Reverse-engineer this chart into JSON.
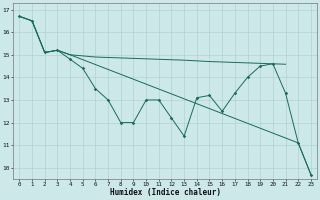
{
  "xlabel": "Humidex (Indice chaleur)",
  "background_color": "#cce8e8",
  "grid_color": "#aacece",
  "line_color": "#1a6b5a",
  "xlim": [
    -0.5,
    23.5
  ],
  "ylim": [
    9.5,
    17.3
  ],
  "yticks": [
    10,
    11,
    12,
    13,
    14,
    15,
    16,
    17
  ],
  "xticks": [
    0,
    1,
    2,
    3,
    4,
    5,
    6,
    7,
    8,
    9,
    10,
    11,
    12,
    13,
    14,
    15,
    16,
    17,
    18,
    19,
    20,
    21,
    22,
    23
  ],
  "line1_x": [
    0,
    1,
    2,
    3,
    4,
    5,
    6,
    7,
    8,
    9,
    10,
    11,
    12,
    13,
    14,
    15,
    16,
    17,
    18,
    19,
    20,
    21,
    22,
    23
  ],
  "line1_y": [
    16.7,
    16.5,
    15.1,
    15.2,
    14.8,
    14.4,
    13.5,
    13.0,
    12.0,
    12.0,
    13.0,
    13.0,
    12.2,
    11.4,
    13.1,
    13.2,
    12.5,
    13.3,
    14.0,
    14.5,
    14.6,
    13.3,
    11.1,
    9.7
  ],
  "line2_x": [
    0,
    1,
    2,
    3,
    4,
    5,
    6,
    7,
    8,
    9,
    10,
    11,
    12,
    13,
    14,
    15,
    16,
    17,
    18,
    19,
    20,
    21
  ],
  "line2_y": [
    16.7,
    16.5,
    15.1,
    15.2,
    15.0,
    14.95,
    14.9,
    14.88,
    14.86,
    14.84,
    14.82,
    14.8,
    14.78,
    14.76,
    14.73,
    14.7,
    14.68,
    14.66,
    14.64,
    14.62,
    14.6,
    14.58
  ],
  "line3_x": [
    0,
    1,
    2,
    3,
    4,
    22,
    23
  ],
  "line3_y": [
    16.7,
    16.5,
    15.1,
    15.2,
    15.0,
    11.1,
    9.7
  ]
}
